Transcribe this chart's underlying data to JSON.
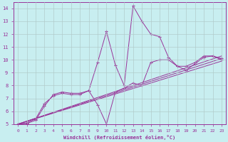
{
  "title": "",
  "xlabel": "Windchill (Refroidissement éolien,°C)",
  "ylabel": "",
  "bg_color": "#c8eef0",
  "line_color": "#993399",
  "grid_color": "#b0c8c8",
  "xlim": [
    -0.5,
    23.5
  ],
  "ylim": [
    5,
    14.5
  ],
  "xticks": [
    0,
    1,
    2,
    3,
    4,
    5,
    6,
    7,
    8,
    9,
    10,
    11,
    12,
    13,
    14,
    15,
    16,
    17,
    18,
    19,
    20,
    21,
    22,
    23
  ],
  "yticks": [
    5,
    6,
    7,
    8,
    9,
    10,
    11,
    12,
    13,
    14
  ],
  "series_marked": [
    {
      "x": [
        0,
        1,
        2,
        3,
        4,
        5,
        6,
        7,
        8,
        9,
        10,
        11,
        12,
        13,
        14,
        15,
        16,
        17,
        18,
        19,
        20,
        21,
        22,
        23
      ],
      "y": [
        5.0,
        5.1,
        5.4,
        6.6,
        7.2,
        7.4,
        7.3,
        7.3,
        7.6,
        9.8,
        12.2,
        9.6,
        8.0,
        14.2,
        13.0,
        12.0,
        11.8,
        10.2,
        9.5,
        9.2,
        9.7,
        10.2,
        10.3,
        10.0
      ]
    },
    {
      "x": [
        0,
        1,
        2,
        3,
        4,
        5,
        6,
        7,
        8,
        9,
        10,
        11,
        12,
        13,
        14,
        15,
        16,
        17,
        18,
        19,
        20,
        21,
        22,
        23
      ],
      "y": [
        5.0,
        5.05,
        5.3,
        6.4,
        7.3,
        7.5,
        7.4,
        7.4,
        7.6,
        6.5,
        5.0,
        7.5,
        7.8,
        8.2,
        8.0,
        9.8,
        10.0,
        10.0,
        9.5,
        9.5,
        9.8,
        10.3,
        10.3,
        10.1
      ]
    }
  ],
  "series_lines": [
    {
      "x": [
        0,
        23
      ],
      "y": [
        5.0,
        10.3
      ]
    },
    {
      "x": [
        0,
        23
      ],
      "y": [
        5.0,
        10.1
      ]
    },
    {
      "x": [
        0,
        23
      ],
      "y": [
        5.0,
        9.9
      ]
    }
  ]
}
